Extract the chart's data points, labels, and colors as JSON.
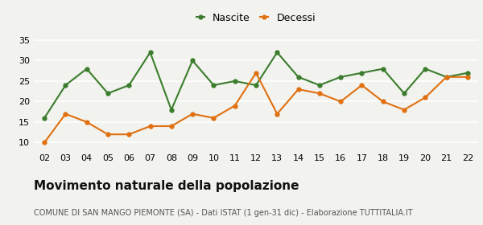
{
  "years": [
    "02",
    "03",
    "04",
    "05",
    "06",
    "07",
    "08",
    "09",
    "10",
    "11",
    "12",
    "13",
    "14",
    "15",
    "16",
    "17",
    "18",
    "19",
    "20",
    "21",
    "22"
  ],
  "nascite": [
    16,
    24,
    28,
    22,
    24,
    32,
    18,
    30,
    24,
    25,
    24,
    32,
    26,
    24,
    26,
    27,
    28,
    22,
    28,
    26,
    27
  ],
  "decessi": [
    10,
    17,
    15,
    12,
    12,
    14,
    14,
    17,
    16,
    19,
    27,
    17,
    23,
    22,
    20,
    24,
    20,
    18,
    21,
    26,
    26
  ],
  "nascite_color": "#3a7d2c",
  "decessi_color": "#e07010",
  "bg_color": "#f2f2ee",
  "grid_color": "#ffffff",
  "title": "Movimento naturale della popolazione",
  "subtitle": "COMUNE DI SAN MANGO PIEMONTE (SA) - Dati ISTAT (1 gen-31 dic) - Elaborazione TUTTITALIA.IT",
  "ylim": [
    8,
    36
  ],
  "yticks": [
    10,
    15,
    20,
    25,
    30,
    35
  ],
  "legend_nascite": "Nascite",
  "legend_decessi": "Decessi",
  "title_fontsize": 11,
  "subtitle_fontsize": 7,
  "tick_fontsize": 8,
  "legend_fontsize": 9
}
